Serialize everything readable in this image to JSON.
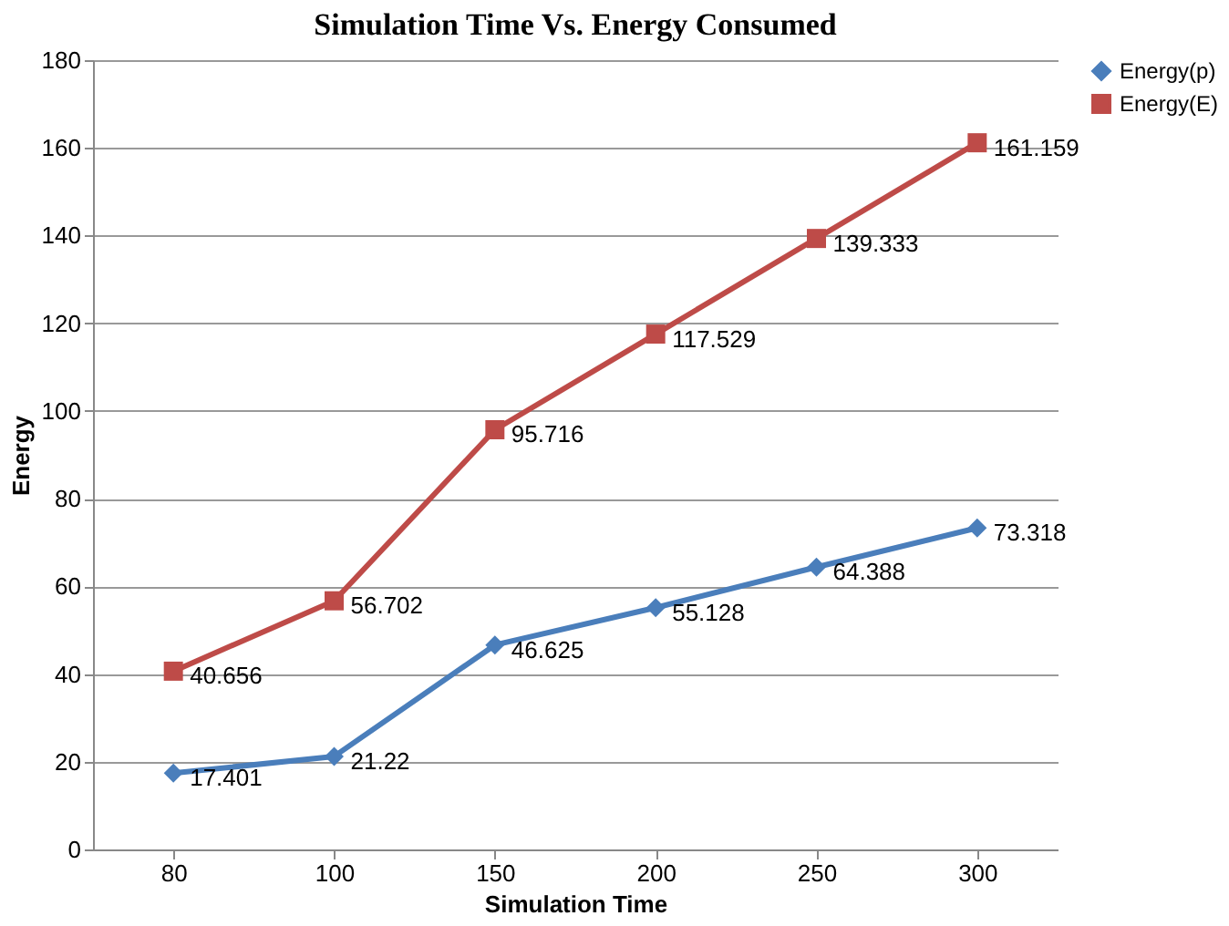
{
  "chart_data": {
    "type": "line",
    "title": "Simulation Time Vs. Energy Consumed",
    "xlabel": "Simulation Time",
    "ylabel": "Energy",
    "categories": [
      "80",
      "100",
      "150",
      "200",
      "250",
      "300"
    ],
    "series": [
      {
        "name": "Energy(p)",
        "color": "#4a7ebb",
        "marker": "diamond",
        "values": [
          17.401,
          21.22,
          46.625,
          55.128,
          64.388,
          73.318
        ]
      },
      {
        "name": "Energy(E)",
        "color": "#be4b48",
        "marker": "square",
        "values": [
          40.656,
          56.702,
          95.716,
          117.529,
          139.333,
          161.159
        ]
      }
    ],
    "ylim": [
      0,
      180
    ],
    "yticks": [
      0,
      20,
      40,
      60,
      80,
      100,
      120,
      140,
      160,
      180
    ],
    "grid": "y",
    "legend": "right",
    "data_labels": true,
    "line_style": "solid"
  }
}
